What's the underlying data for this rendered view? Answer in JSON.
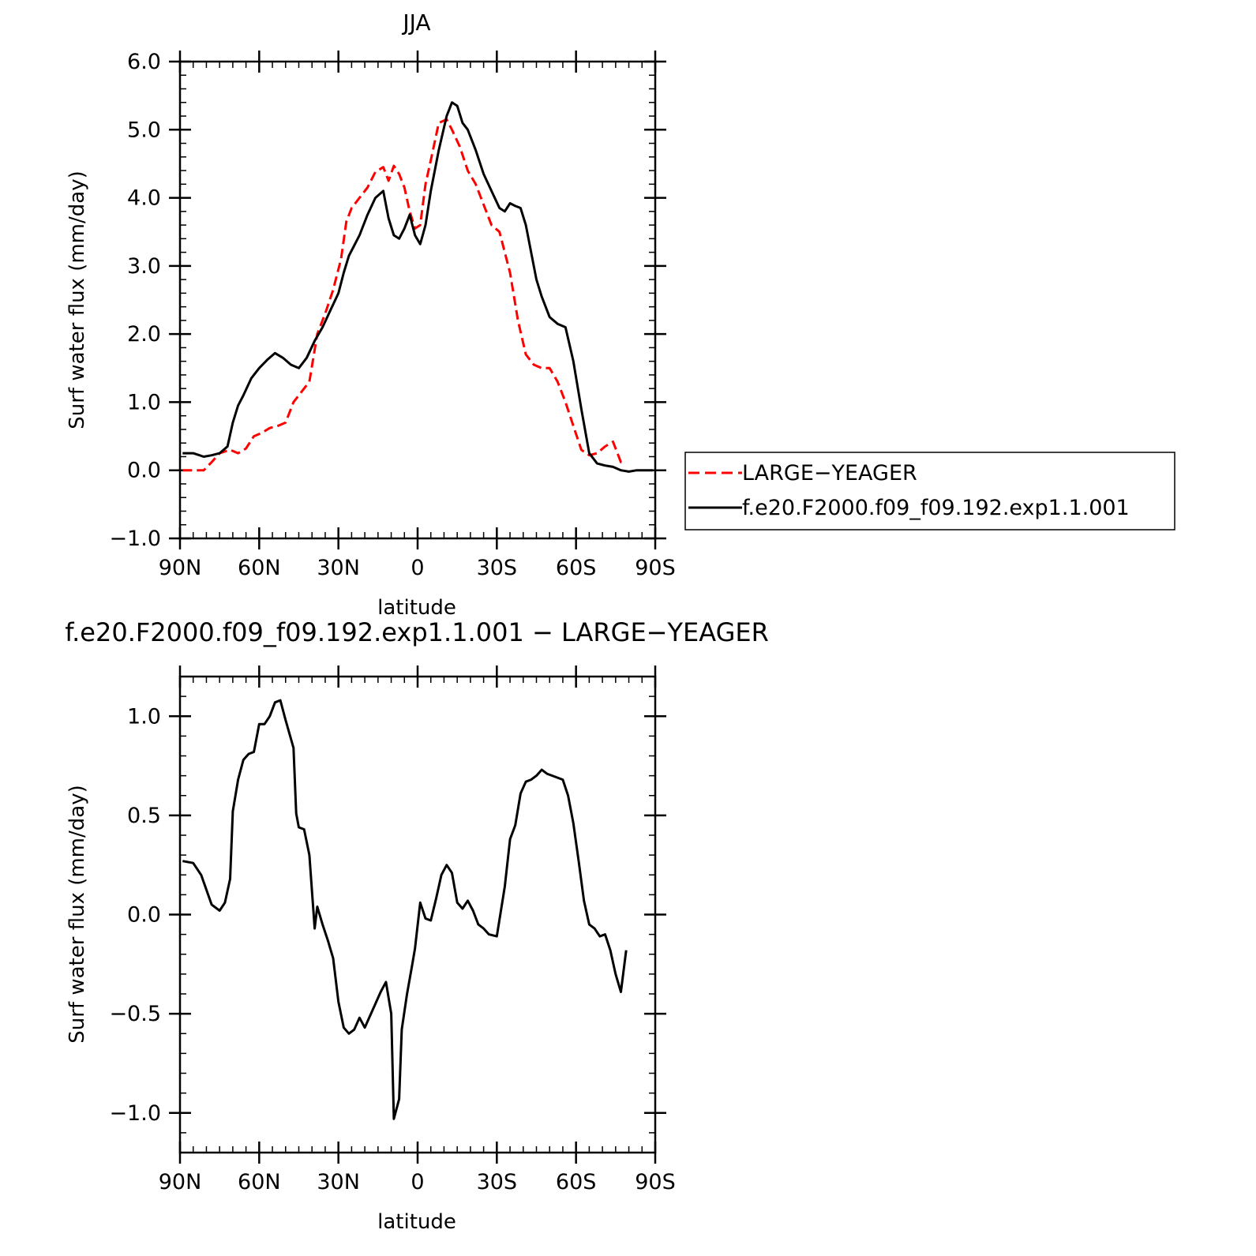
{
  "chart_data": [
    {
      "type": "line",
      "title": "JJA",
      "xlabel": "latitude",
      "ylabel": "Surf water flux (mm/day)",
      "xlim": [
        90,
        -90
      ],
      "ylim": [
        -1.0,
        6.0
      ],
      "xticks": [
        90,
        60,
        30,
        0,
        -30,
        -60,
        -90
      ],
      "xtick_labels": [
        "90N",
        "60N",
        "30N",
        "0",
        "30S",
        "60S",
        "90S"
      ],
      "yticks": [
        -1.0,
        0.0,
        1.0,
        2.0,
        3.0,
        4.0,
        5.0,
        6.0
      ],
      "ytick_labels": [
        "−1.0",
        "0.0",
        "1.0",
        "2.0",
        "3.0",
        "4.0",
        "5.0",
        "6.0"
      ],
      "legend_position": "right",
      "series": [
        {
          "name": "LARGE−YEAGER",
          "color": "#ff0000",
          "dash": "dashed",
          "x": [
            89,
            85,
            81,
            78,
            75,
            71,
            68,
            65,
            62,
            59,
            56,
            53,
            50,
            47,
            44,
            41,
            38,
            35,
            32,
            29,
            27,
            25,
            22,
            19,
            16,
            13,
            11,
            9,
            7,
            5,
            3,
            1,
            -1,
            -3,
            -5,
            -8,
            -11,
            -13,
            -16,
            -19,
            -22,
            -25,
            -28,
            -31,
            -33,
            -35,
            -38,
            -41,
            -44,
            -47,
            -50,
            -53,
            -56,
            -59,
            -62,
            -65,
            -68,
            -71,
            -74,
            -77,
            -79
          ],
          "y": [
            0.0,
            0.0,
            0.0,
            0.12,
            0.25,
            0.3,
            0.25,
            0.32,
            0.5,
            0.55,
            0.62,
            0.65,
            0.7,
            1.0,
            1.15,
            1.3,
            2.0,
            2.3,
            2.65,
            3.1,
            3.65,
            3.85,
            4.0,
            4.15,
            4.38,
            4.45,
            4.25,
            4.47,
            4.35,
            4.15,
            3.8,
            3.55,
            3.6,
            4.2,
            4.55,
            5.1,
            5.15,
            5.0,
            4.75,
            4.4,
            4.2,
            3.9,
            3.6,
            3.5,
            3.2,
            2.9,
            2.2,
            1.7,
            1.55,
            1.5,
            1.5,
            1.3,
            1.0,
            0.65,
            0.3,
            0.22,
            0.25,
            0.35,
            0.42,
            0.12,
            0.12
          ]
        },
        {
          "name": "f.e20.F2000.f09_f09.192.exp1.1.001",
          "color": "#000000",
          "dash": "solid",
          "x": [
            89,
            85,
            81,
            78,
            75,
            72,
            70,
            68,
            66,
            63,
            60,
            57,
            54,
            51,
            48,
            45,
            42,
            39,
            36,
            33,
            30,
            28,
            26,
            24,
            22,
            19,
            16,
            13,
            11,
            9,
            7,
            5,
            3,
            1,
            -1,
            -3,
            -5,
            -8,
            -11,
            -13,
            -15,
            -17,
            -19,
            -22,
            -25,
            -28,
            -31,
            -33,
            -35,
            -37,
            -39,
            -41,
            -43,
            -45,
            -47,
            -50,
            -53,
            -56,
            -59,
            -62,
            -65,
            -68,
            -71,
            -74,
            -77,
            -80,
            -83,
            -86,
            -89
          ],
          "y": [
            0.25,
            0.25,
            0.2,
            0.22,
            0.25,
            0.35,
            0.7,
            0.95,
            1.1,
            1.35,
            1.5,
            1.62,
            1.72,
            1.65,
            1.55,
            1.5,
            1.65,
            1.9,
            2.1,
            2.35,
            2.6,
            2.9,
            3.15,
            3.3,
            3.45,
            3.75,
            4.0,
            4.1,
            3.7,
            3.45,
            3.4,
            3.55,
            3.75,
            3.45,
            3.32,
            3.6,
            4.1,
            4.7,
            5.2,
            5.4,
            5.35,
            5.1,
            5.0,
            4.7,
            4.35,
            4.1,
            3.85,
            3.8,
            3.92,
            3.88,
            3.85,
            3.6,
            3.2,
            2.8,
            2.55,
            2.25,
            2.15,
            2.1,
            1.6,
            0.9,
            0.25,
            0.1,
            0.07,
            0.05,
            0.0,
            -0.02,
            0.0,
            0.0,
            0.0
          ]
        }
      ]
    },
    {
      "type": "line",
      "title": "f.e20.F2000.f09_f09.192.exp1.1.001 − LARGE−YEAGER",
      "xlabel": "latitude",
      "ylabel": "Surf water flux (mm/day)",
      "xlim": [
        90,
        -90
      ],
      "ylim": [
        -1.2,
        1.2
      ],
      "xticks": [
        90,
        60,
        30,
        0,
        -30,
        -60,
        -90
      ],
      "xtick_labels": [
        "90N",
        "60N",
        "30N",
        "0",
        "30S",
        "60S",
        "90S"
      ],
      "yticks": [
        -1.0,
        -0.5,
        0.0,
        0.5,
        1.0
      ],
      "ytick_labels": [
        "−1.0",
        "−0.5",
        "0.0",
        "0.5",
        "1.0"
      ],
      "series": [
        {
          "color": "#000000",
          "dash": "solid",
          "x": [
            89,
            85,
            82,
            78,
            75,
            73,
            71,
            70,
            68,
            66,
            64,
            62,
            60,
            58,
            56,
            54,
            52,
            50,
            47,
            46,
            45,
            43,
            41,
            39,
            38,
            36,
            34,
            32,
            30,
            28,
            26,
            24,
            22,
            20,
            18,
            16,
            14,
            12,
            10,
            9,
            7,
            6,
            4,
            2,
            1,
            -1,
            -3,
            -5,
            -7,
            -9,
            -11,
            -13,
            -15,
            -17,
            -19,
            -21,
            -23,
            -25,
            -27,
            -30,
            -33,
            -35,
            -37,
            -39,
            -41,
            -43,
            -45,
            -47,
            -49,
            -51,
            -53,
            -55,
            -57,
            -59,
            -61,
            -63,
            -65,
            -67,
            -69,
            -71,
            -73,
            -75,
            -77,
            -79
          ],
          "y": [
            0.27,
            0.26,
            0.2,
            0.05,
            0.02,
            0.06,
            0.18,
            0.52,
            0.68,
            0.78,
            0.81,
            0.82,
            0.96,
            0.96,
            1.0,
            1.07,
            1.08,
            0.98,
            0.84,
            0.51,
            0.44,
            0.43,
            0.3,
            -0.07,
            0.04,
            -0.05,
            -0.13,
            -0.22,
            -0.44,
            -0.57,
            -0.6,
            -0.58,
            -0.52,
            -0.57,
            -0.51,
            -0.45,
            -0.39,
            -0.34,
            -0.5,
            -1.03,
            -0.93,
            -0.58,
            -0.4,
            -0.25,
            -0.17,
            0.06,
            -0.02,
            -0.03,
            0.08,
            0.2,
            0.25,
            0.21,
            0.06,
            0.03,
            0.07,
            0.02,
            -0.05,
            -0.07,
            -0.1,
            -0.11,
            0.14,
            0.38,
            0.45,
            0.61,
            0.67,
            0.68,
            0.7,
            0.73,
            0.71,
            0.7,
            0.69,
            0.68,
            0.6,
            0.46,
            0.27,
            0.07,
            -0.05,
            -0.07,
            -0.11,
            -0.1,
            -0.18,
            -0.3,
            -0.39,
            -0.18
          ]
        }
      ]
    }
  ]
}
